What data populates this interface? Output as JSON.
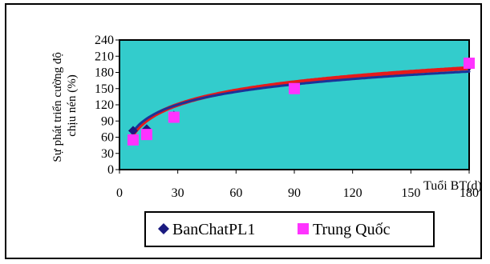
{
  "chart_data": {
    "type": "scatter",
    "title": "",
    "xlabel": "Tuổi BT(d)",
    "ylabel_lines": [
      "Sự phát triển cường độ",
      "chịu nén (%)"
    ],
    "xlim": [
      0,
      180
    ],
    "ylim": [
      0,
      240
    ],
    "x_ticks": [
      0,
      30,
      60,
      90,
      120,
      150,
      180
    ],
    "y_ticks": [
      0,
      30,
      60,
      90,
      120,
      150,
      180,
      210,
      240
    ],
    "grid": false,
    "plot_background": "#33CCCC",
    "legend_position": "bottom",
    "series": [
      {
        "name": "BanChatPL1",
        "marker": "diamond",
        "color": "#1A1A80",
        "x": [
          7,
          14,
          28,
          90,
          180
        ],
        "y": [
          72,
          75,
          100,
          150,
          192
        ]
      },
      {
        "name": "Trung Quốc",
        "marker": "square",
        "color": "#FF33FF",
        "x": [
          7,
          14,
          28,
          90,
          180
        ],
        "y": [
          55,
          65,
          97,
          150,
          197
        ]
      }
    ],
    "trendlines": [
      {
        "series": "Trung Quốc",
        "color": "#E61A1A",
        "a": -8.4,
        "b": 37.8
      },
      {
        "series": "BanChatPL1",
        "color": "#1A3399",
        "a": 4,
        "b": 34.2
      }
    ]
  }
}
